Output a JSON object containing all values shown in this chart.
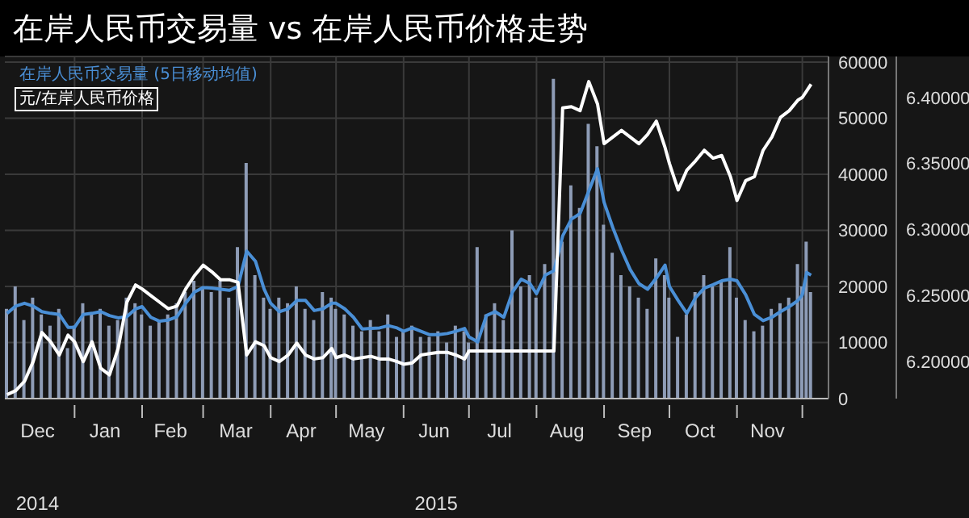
{
  "chart_data": {
    "type": "bar",
    "title": "在岸人民币交易量 vs 在岸人民币价格走势",
    "x": [
      "2014-12-01",
      "2014-12-05",
      "2014-12-09",
      "2014-12-13",
      "2014-12-17",
      "2014-12-21",
      "2014-12-25",
      "2014-12-29",
      "2015-01-01",
      "2015-01-05",
      "2015-01-09",
      "2015-01-13",
      "2015-01-17",
      "2015-01-21",
      "2015-01-25",
      "2015-01-29",
      "2015-02-01",
      "2015-02-05",
      "2015-02-09",
      "2015-02-13",
      "2015-02-17",
      "2015-02-21",
      "2015-02-25",
      "2015-03-01",
      "2015-03-05",
      "2015-03-09",
      "2015-03-13",
      "2015-03-17",
      "2015-03-21",
      "2015-03-25",
      "2015-03-29",
      "2015-04-01",
      "2015-04-05",
      "2015-04-09",
      "2015-04-13",
      "2015-04-17",
      "2015-04-21",
      "2015-04-25",
      "2015-04-29",
      "2015-05-01",
      "2015-05-05",
      "2015-05-09",
      "2015-05-13",
      "2015-05-17",
      "2015-05-21",
      "2015-05-25",
      "2015-05-29",
      "2015-06-01",
      "2015-06-05",
      "2015-06-09",
      "2015-06-13",
      "2015-06-17",
      "2015-06-21",
      "2015-06-25",
      "2015-06-29",
      "2015-07-01",
      "2015-07-05",
      "2015-07-09",
      "2015-07-13",
      "2015-07-17",
      "2015-07-21",
      "2015-07-25",
      "2015-07-29",
      "2015-08-01",
      "2015-08-05",
      "2015-08-09",
      "2015-08-13",
      "2015-08-17",
      "2015-08-21",
      "2015-08-25",
      "2015-08-29",
      "2015-09-01",
      "2015-09-05",
      "2015-09-09",
      "2015-09-13",
      "2015-09-17",
      "2015-09-21",
      "2015-09-25",
      "2015-09-29",
      "2015-10-01",
      "2015-10-05",
      "2015-10-09",
      "2015-10-13",
      "2015-10-17",
      "2015-10-21",
      "2015-10-25",
      "2015-10-29",
      "2015-11-01",
      "2015-11-05",
      "2015-11-09",
      "2015-11-13",
      "2015-11-17",
      "2015-11-21",
      "2015-11-25",
      "2015-11-29",
      "2015-12-01",
      "2015-12-03",
      "2015-12-05"
    ],
    "series": [
      {
        "color": "#8e9cb6",
        "values": [
          16000,
          20000,
          14000,
          18000,
          15000,
          13000,
          16000,
          9000,
          13000,
          17000,
          15000,
          16000,
          13000,
          14000,
          18000,
          17000,
          15000,
          13000,
          14000,
          15000,
          17000,
          19000,
          21000,
          20000,
          19000,
          21000,
          18000,
          27000,
          42000,
          22000,
          18000,
          16000,
          18000,
          17000,
          20000,
          16000,
          14000,
          19000,
          18000,
          16000,
          15000,
          13000,
          12000,
          14000,
          12000,
          15000,
          11000,
          12000,
          13000,
          11000,
          11000,
          12000,
          10000,
          13000,
          12000,
          10000,
          27000,
          15000,
          17000,
          14000,
          30000,
          20000,
          22000,
          18000,
          24000,
          57000,
          28000,
          38000,
          34000,
          49000,
          45000,
          31000,
          26000,
          22000,
          20000,
          18000,
          16000,
          25000,
          22000,
          18000,
          11000,
          15000,
          19000,
          22000,
          20000,
          21000,
          27000,
          18000,
          14000,
          12000,
          13000,
          16000,
          17000,
          18000,
          24000,
          20000,
          28000,
          19000
        ]
      },
      {
        "type": "line",
        "name": "在岸人民币交易量 (5日移动均值)",
        "color": "#4a8fd6",
        "values": [
          15200,
          16500,
          17000,
          16500,
          15500,
          15200,
          15000,
          12700,
          12700,
          15000,
          15200,
          15500,
          14800,
          14400,
          14600,
          16000,
          16400,
          14500,
          13800,
          14000,
          14600,
          17000,
          19000,
          19800,
          19700,
          19500,
          19300,
          20000,
          26300,
          24500,
          19500,
          17000,
          15500,
          16000,
          17500,
          17500,
          15700,
          16000,
          17000,
          17000,
          16000,
          14500,
          12400,
          12500,
          12600,
          13000,
          12600,
          12000,
          12600,
          12000,
          11400,
          11400,
          11600,
          12000,
          12500,
          11000,
          10100,
          14800,
          15500,
          14500,
          19000,
          21300,
          20500,
          18700,
          22000,
          22800,
          29000,
          32000,
          33000,
          37000,
          41000,
          35000,
          30500,
          26500,
          23000,
          20500,
          19500,
          21500,
          23800,
          20000,
          17500,
          15200,
          18000,
          19700,
          20300,
          21000,
          21300,
          21000,
          18500,
          15000,
          13900,
          14500,
          15500,
          16400,
          17500,
          18500,
          22500,
          22000
        ]
      },
      {
        "type": "line",
        "name": "元/在岸人民币价格",
        "color": "#ffffff",
        "axis": "y2",
        "values": [
          6.175,
          6.178,
          6.185,
          6.2,
          6.222,
          6.215,
          6.205,
          6.22,
          6.215,
          6.2,
          6.215,
          6.195,
          6.19,
          6.21,
          6.245,
          6.258,
          6.255,
          6.25,
          6.245,
          6.24,
          6.242,
          6.255,
          6.265,
          6.273,
          6.268,
          6.262,
          6.262,
          6.26,
          6.205,
          6.215,
          6.212,
          6.203,
          6.2,
          6.205,
          6.214,
          6.205,
          6.202,
          6.203,
          6.21,
          6.203,
          6.205,
          6.202,
          6.203,
          6.204,
          6.202,
          6.202,
          6.2,
          6.198,
          6.199,
          6.205,
          6.206,
          6.207,
          6.207,
          6.205,
          6.202,
          6.208,
          6.208,
          6.208,
          6.208,
          6.208,
          6.208,
          6.208,
          6.208,
          6.208,
          6.208,
          6.208,
          6.392,
          6.393,
          6.39,
          6.412,
          6.395,
          6.365,
          6.37,
          6.375,
          6.37,
          6.365,
          6.372,
          6.382,
          6.362,
          6.35,
          6.33,
          6.345,
          6.352,
          6.36,
          6.354,
          6.356,
          6.34,
          6.322,
          6.337,
          6.34,
          6.36,
          6.37,
          6.385,
          6.39,
          6.398,
          6.4,
          6.405,
          6.41
        ]
      }
    ],
    "xlim": [
      "2014-11-30",
      "2015-12-13"
    ],
    "xticks": [
      {
        "value": "2014-12-15",
        "label": "Dec"
      },
      {
        "value": "2015-01-01",
        "label": null
      },
      {
        "value": "2015-01-15",
        "label": "Jan"
      },
      {
        "value": "2015-02-01",
        "label": null
      },
      {
        "value": "2015-02-14",
        "label": "Feb"
      },
      {
        "value": "2015-03-01",
        "label": null
      },
      {
        "value": "2015-03-16",
        "label": "Mar"
      },
      {
        "value": "2015-04-01",
        "label": null
      },
      {
        "value": "2015-04-15",
        "label": "Apr"
      },
      {
        "value": "2015-05-01",
        "label": null
      },
      {
        "value": "2015-05-15",
        "label": "May"
      },
      {
        "value": "2015-06-01",
        "label": null
      },
      {
        "value": "2015-06-15",
        "label": "Jun"
      },
      {
        "value": "2015-07-01",
        "label": null
      },
      {
        "value": "2015-07-15",
        "label": "Jul"
      },
      {
        "value": "2015-08-01",
        "label": null
      },
      {
        "value": "2015-08-15",
        "label": "Aug"
      },
      {
        "value": "2015-09-01",
        "label": null
      },
      {
        "value": "2015-09-15",
        "label": "Sep"
      },
      {
        "value": "2015-10-01",
        "label": null
      },
      {
        "value": "2015-10-15",
        "label": "Oct"
      },
      {
        "value": "2015-11-01",
        "label": null
      },
      {
        "value": "2015-11-15",
        "label": "Nov"
      },
      {
        "value": "2015-12-01",
        "label": null
      }
    ],
    "ylim": [
      0,
      61000
    ],
    "yticks": [
      0,
      10000,
      20000,
      30000,
      40000,
      50000,
      60000
    ],
    "y2lim": [
      6.172,
      6.431
    ],
    "y2ticks": [
      {
        "value": 6.2,
        "label": "6.20000"
      },
      {
        "value": 6.25,
        "label": "6.25000"
      },
      {
        "value": 6.3,
        "label": "6.30000"
      },
      {
        "value": 6.35,
        "label": "6.35000"
      },
      {
        "value": 6.4,
        "label": "6.40000"
      }
    ],
    "annotations": [
      "2014",
      "2015"
    ],
    "grid": true,
    "legend": "top left"
  }
}
